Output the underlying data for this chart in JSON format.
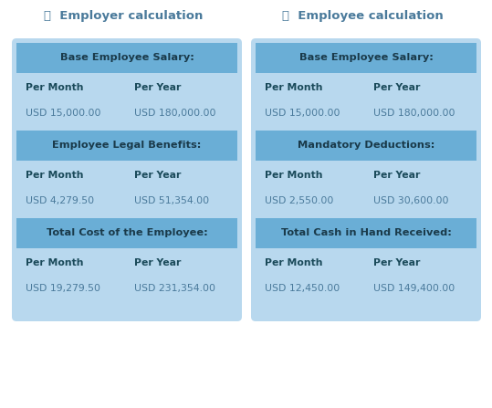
{
  "title_left": "Employer calculation",
  "title_right": "Employee calculation",
  "bg_color": "#ffffff",
  "card_bg_light": "#b8d8ee",
  "header_bg": "#6aaed6",
  "header_text_color": "#1a3a4a",
  "label_text_color": "#1a4a5a",
  "value_text_color": "#4a7a9b",
  "title_text_color": "#4a7a9b",
  "left_sections": [
    {
      "header": "Base Employee Salary:",
      "per_month": "USD 15,000.00",
      "per_year": "USD 180,000.00"
    },
    {
      "header": "Employee Legal Benefits:",
      "per_month": "USD 4,279.50",
      "per_year": "USD 51,354.00"
    },
    {
      "header": "Total Cost of the Employee:",
      "per_month": "USD 19,279.50",
      "per_year": "USD 231,354.00"
    }
  ],
  "right_sections": [
    {
      "header": "Base Employee Salary:",
      "per_month": "USD 15,000.00",
      "per_year": "USD 180,000.00"
    },
    {
      "header": "Mandatory Deductions:",
      "per_month": "USD 2,550.00",
      "per_year": "USD 30,600.00"
    },
    {
      "header": "Total Cash in Hand Received:",
      "per_month": "USD 12,450.00",
      "per_year": "USD 149,400.00"
    }
  ]
}
